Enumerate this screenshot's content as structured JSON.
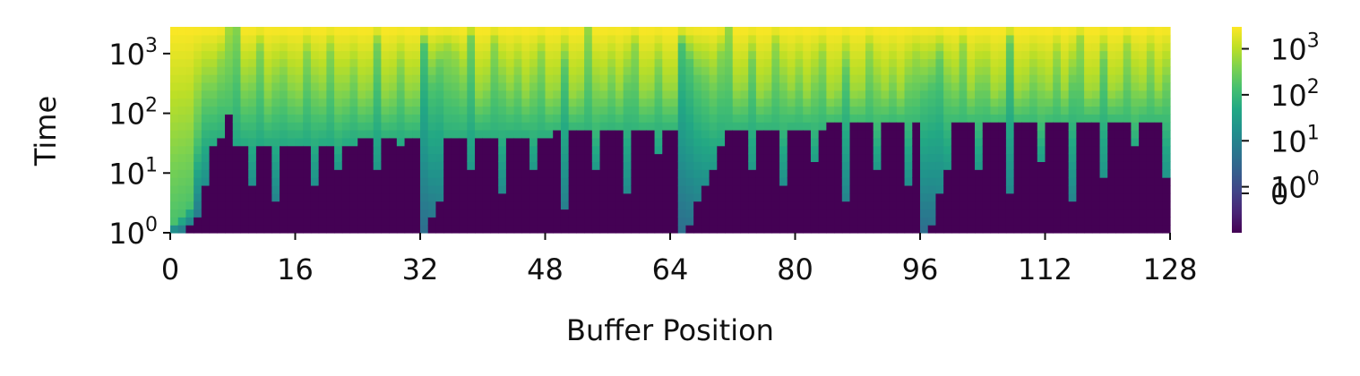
{
  "chart_data": {
    "type": "heatmap",
    "title": "",
    "xlabel": "Buffer Position",
    "ylabel": "Time",
    "xlim": [
      0,
      128
    ],
    "ylim": [
      1,
      2800
    ],
    "y_scale": "log",
    "x_ticks": [
      "0",
      "16",
      "32",
      "48",
      "64",
      "80",
      "96",
      "112",
      "128"
    ],
    "y_ticks": [
      {
        "value": 1,
        "base": "10",
        "exp": "0"
      },
      {
        "value": 10,
        "base": "10",
        "exp": "1"
      },
      {
        "value": 100,
        "base": "10",
        "exp": "2"
      },
      {
        "value": 1000,
        "base": "10",
        "exp": "3"
      }
    ],
    "colorbar": {
      "colormap": "viridis",
      "scale": "symlog",
      "ticks": [
        {
          "label": "0",
          "base": "",
          "exp": ""
        },
        {
          "label": "",
          "base": "10",
          "exp": "0"
        },
        {
          "label": "",
          "base": "10",
          "exp": "1"
        },
        {
          "label": "",
          "base": "10",
          "exp": "2"
        },
        {
          "label": "",
          "base": "10",
          "exp": "3"
        }
      ]
    },
    "columns": 128,
    "threshold_time": [
      1.0,
      1.0,
      1.2,
      1.6,
      6.0,
      25,
      45,
      100,
      25,
      25,
      6.0,
      25,
      25,
      3.8,
      25,
      25,
      30,
      30,
      6.0,
      30,
      30,
      12,
      30,
      30,
      35,
      35,
      12,
      35,
      35,
      25,
      35,
      35,
      1.1,
      1.6,
      3.5,
      45,
      45,
      45,
      12,
      45,
      45,
      45,
      4.0,
      45,
      45,
      45,
      12,
      45,
      45,
      50,
      2.5,
      50,
      50,
      50,
      12,
      50,
      50,
      50,
      4.5,
      50,
      50,
      50,
      20,
      55,
      55,
      1.0,
      1.5,
      3.0,
      7.0,
      12,
      30,
      60,
      60,
      60,
      12,
      60,
      60,
      60,
      7.0,
      60,
      60,
      60,
      16,
      60,
      65,
      65,
      3.0,
      65,
      65,
      65,
      12,
      65,
      65,
      65,
      6.0,
      65,
      1.1,
      1.5,
      4.0,
      10,
      65,
      65,
      65,
      12,
      65,
      70,
      70,
      4.5,
      70,
      70,
      70,
      18,
      70,
      70,
      70,
      3.5,
      70,
      80,
      80,
      8.0,
      80,
      80,
      80,
      25,
      80,
      80,
      80,
      8.0,
      85,
      90
    ],
    "mid_time": [
      1.5,
      2.0,
      3.0,
      40,
      200,
      350,
      800,
      2800,
      2800,
      280,
      200,
      1200,
      200,
      180,
      500,
      250,
      220,
      1000,
      180,
      250,
      1100,
      160,
      250,
      500,
      200,
      240,
      1500,
      200,
      250,
      600,
      220,
      250,
      1300,
      300,
      600,
      1200,
      900,
      500,
      2000,
      220,
      300,
      1500,
      220,
      300,
      600,
      220,
      260,
      1000,
      200,
      250,
      600,
      200,
      260,
      2500,
      200,
      280,
      600,
      250,
      300,
      1400,
      230,
      260,
      600,
      240,
      260,
      1400,
      700,
      400,
      400,
      300,
      1000,
      2800,
      250,
      300,
      800,
      220,
      300,
      1500,
      220,
      280,
      600,
      220,
      300,
      1000,
      200,
      260,
      500,
      230,
      250,
      1200,
      230,
      250,
      500,
      230,
      260,
      900,
      200,
      300,
      800,
      300,
      400,
      1400,
      250,
      300,
      600,
      220,
      300,
      1600,
      240,
      300,
      600,
      230,
      280,
      1000,
      250,
      300,
      1800,
      230,
      260,
      800,
      240,
      300,
      1400,
      250,
      300,
      1000,
      280,
      300
    ]
  }
}
